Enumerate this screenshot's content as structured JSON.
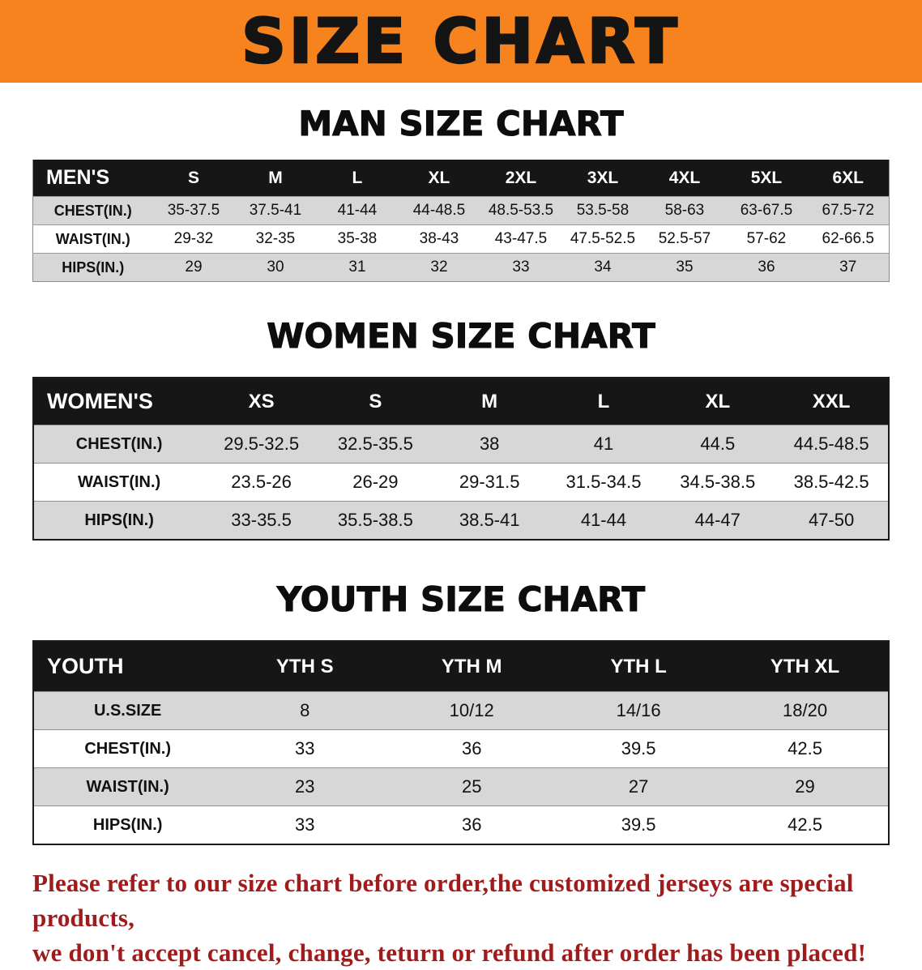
{
  "banner": {
    "title": "SIZE CHART"
  },
  "colors": {
    "banner_bg": "#F6831E",
    "table_header_bg": "#161616",
    "row_stripe": "#D7D7D7",
    "footer_text": "#A01C1C"
  },
  "sections": [
    {
      "heading": "MAN SIZE CHART",
      "table": {
        "header": [
          "MEN'S",
          "S",
          "M",
          "L",
          "XL",
          "2XL",
          "3XL",
          "4XL",
          "5XL",
          "6XL"
        ],
        "rows": [
          [
            "CHEST(IN.)",
            "35-37.5",
            "37.5-41",
            "41-44",
            "44-48.5",
            "48.5-53.5",
            "53.5-58",
            "58-63",
            "63-67.5",
            "67.5-72"
          ],
          [
            "WAIST(IN.)",
            "29-32",
            "32-35",
            "35-38",
            "38-43",
            "43-47.5",
            "47.5-52.5",
            "52.5-57",
            "57-62",
            "62-66.5"
          ],
          [
            "HIPS(IN.)",
            "29",
            "30",
            "31",
            "32",
            "33",
            "34",
            "35",
            "36",
            "37"
          ]
        ]
      }
    },
    {
      "heading": "WOMEN SIZE CHART",
      "table": {
        "header": [
          "WOMEN'S",
          "XS",
          "S",
          "M",
          "L",
          "XL",
          "XXL"
        ],
        "rows": [
          [
            "CHEST(IN.)",
            "29.5-32.5",
            "32.5-35.5",
            "38",
            "41",
            "44.5",
            "44.5-48.5"
          ],
          [
            "WAIST(IN.)",
            "23.5-26",
            "26-29",
            "29-31.5",
            "31.5-34.5",
            "34.5-38.5",
            "38.5-42.5"
          ],
          [
            "HIPS(IN.)",
            "33-35.5",
            "35.5-38.5",
            "38.5-41",
            "41-44",
            "44-47",
            "47-50"
          ]
        ]
      }
    },
    {
      "heading": "YOUTH SIZE CHART",
      "table": {
        "header": [
          "YOUTH",
          "YTH S",
          "YTH M",
          "YTH L",
          "YTH XL"
        ],
        "rows": [
          [
            "U.S.SIZE",
            "8",
            "10/12",
            "14/16",
            "18/20"
          ],
          [
            "CHEST(IN.)",
            "33",
            "36",
            "39.5",
            "42.5"
          ],
          [
            "WAIST(IN.)",
            "23",
            "25",
            "27",
            "29"
          ],
          [
            "HIPS(IN.)",
            "33",
            "36",
            "39.5",
            "42.5"
          ]
        ]
      }
    }
  ],
  "footer": {
    "lines": [
      "Please refer to our size chart before order,the customized jerseys are special products,",
      "we don't accept cancel, change, teturn or refund after order has been placed!"
    ]
  }
}
